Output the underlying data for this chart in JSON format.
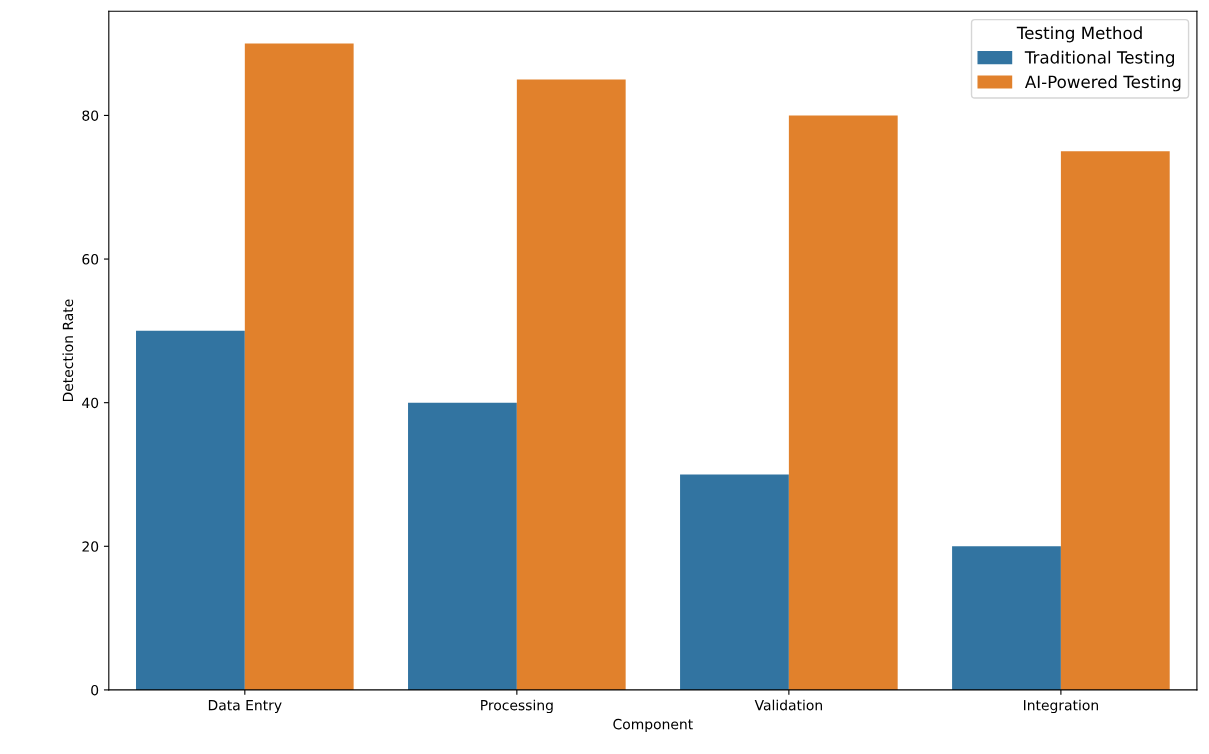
{
  "chart_data": {
    "type": "bar",
    "xlabel": "Component",
    "ylabel": "Detection Rate",
    "categories": [
      "Data Entry",
      "Processing",
      "Validation",
      "Integration"
    ],
    "series": [
      {
        "name": "Traditional Testing",
        "color": "#3274a1",
        "values": [
          50,
          40,
          30,
          20
        ]
      },
      {
        "name": "AI-Powered Testing",
        "color": "#e1812c",
        "values": [
          90,
          85,
          80,
          75
        ]
      }
    ],
    "legend_title": "Testing Method",
    "legend": "top right",
    "ylim": [
      0,
      94.5
    ],
    "yticks": [
      0,
      20,
      40,
      60,
      80
    ],
    "grid": false
  }
}
